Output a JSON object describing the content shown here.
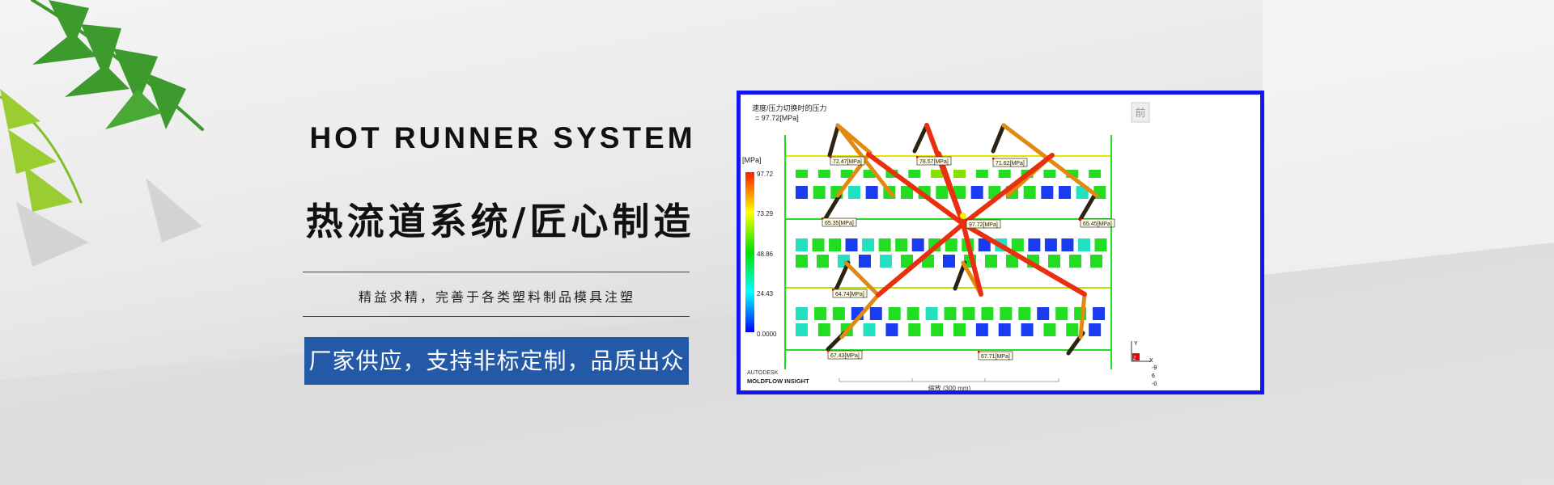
{
  "hero": {
    "title_en": "HOT RUNNER SYSTEM",
    "title_cn": "热流道系统/匠心制造",
    "subtitle": "精益求精，完善于各类塑料制品模具注塑",
    "cta": "厂家供应，支持非标定制，品质出众",
    "cta_color": "#2359a7"
  },
  "simulation": {
    "result_title": "速度/压力切换时的压力",
    "result_value": "= 97.72[MPa]",
    "unit": "[MPa]",
    "scale_labels": [
      "97.72",
      "73.29",
      "48.86",
      "24.43",
      "0.0000"
    ],
    "probes": [
      "72.47[MPa]",
      "78.57[MPa]",
      "71.62[MPa]",
      "65.35[MPa]",
      "97.72[MPa]",
      "65.45[MPa]",
      "64.74[MPa]",
      "67.43[MPa]",
      "67.71[MPa]"
    ],
    "view_button": "前",
    "brand_line1": "AUTODESK",
    "brand_line2": "MOLDFLOW INSIGHT",
    "scale_bar": "缩放 (300 mm)",
    "axis": {
      "y": "Y",
      "z": "Z",
      "x": "X",
      "readouts": [
        "-9",
        "6",
        "-0"
      ]
    },
    "border_color": "#1515f0"
  }
}
